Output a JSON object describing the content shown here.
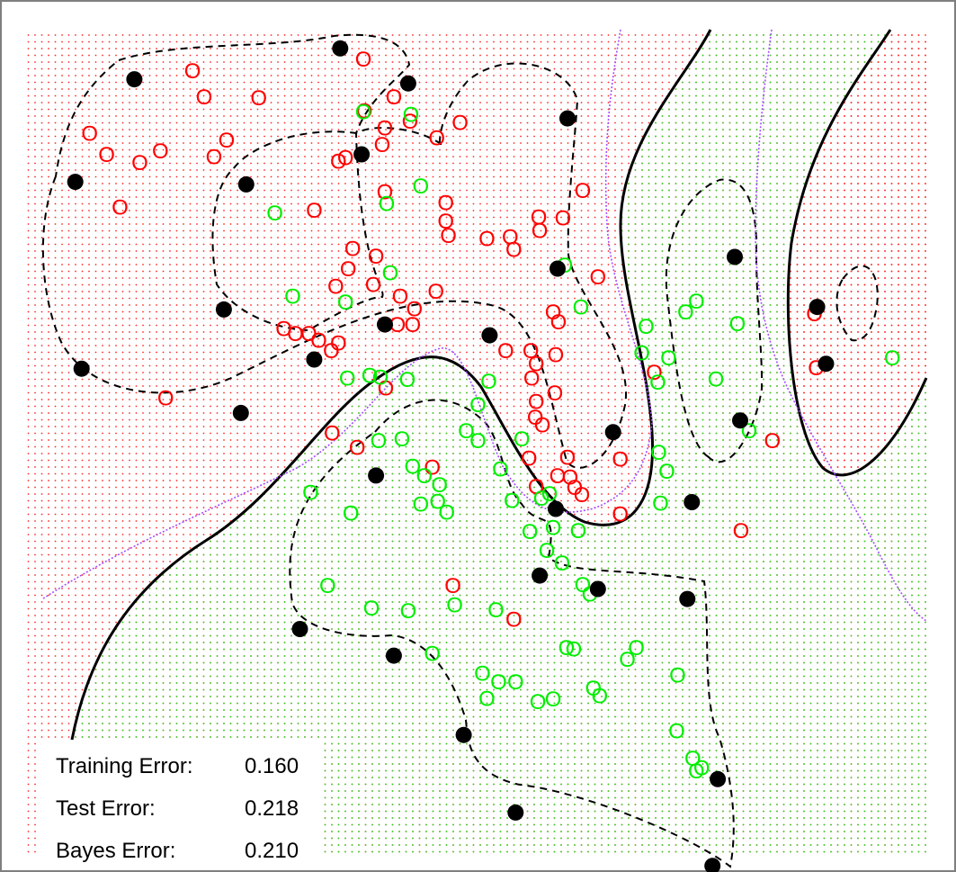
{
  "colors": {
    "class_red": "#ff0000",
    "class_green": "#00ee00",
    "region_red": "#ff2a2a",
    "region_green": "#2adc2a",
    "svm_boundary": "#000000",
    "svm_margin": "#000000",
    "bayes_boundary": "#a64dff",
    "support_vector": "#000000",
    "frame": "#7f7f7f"
  },
  "stats": {
    "training_label": "Training Error:",
    "training_value": "0.160",
    "test_label": "Test Error:",
    "test_value": "0.218",
    "bayes_label": "Bayes Error:",
    "bayes_value": "0.210"
  },
  "chart_data": {
    "type": "scatter",
    "title": "",
    "xlabel": "",
    "ylabel": "",
    "xlim": [
      0,
      1
    ],
    "ylim": [
      0,
      1
    ],
    "grid": false,
    "legend": "none",
    "marker_glyph": "O",
    "series": [
      {
        "class": "red",
        "points": [
          [
            0.185,
            0.955
          ],
          [
            0.198,
            0.924
          ],
          [
            0.259,
            0.923
          ],
          [
            0.07,
            0.88
          ],
          [
            0.089,
            0.855
          ],
          [
            0.126,
            0.845
          ],
          [
            0.149,
            0.859
          ],
          [
            0.223,
            0.872
          ],
          [
            0.209,
            0.852
          ],
          [
            0.104,
            0.792
          ],
          [
            0.348,
            0.847
          ],
          [
            0.376,
            0.969
          ],
          [
            0.41,
            0.924
          ],
          [
            0.377,
            0.907
          ],
          [
            0.428,
            0.895
          ],
          [
            0.4,
            0.887
          ],
          [
            0.484,
            0.893
          ],
          [
            0.458,
            0.875
          ],
          [
            0.397,
            0.867
          ],
          [
            0.356,
            0.851
          ],
          [
            0.4,
            0.81
          ],
          [
            0.321,
            0.788
          ],
          [
            0.468,
            0.797
          ],
          [
            0.468,
            0.775
          ],
          [
            0.471,
            0.758
          ],
          [
            0.514,
            0.754
          ],
          [
            0.54,
            0.756
          ],
          [
            0.544,
            0.741
          ],
          [
            0.572,
            0.78
          ],
          [
            0.573,
            0.764
          ],
          [
            0.599,
            0.779
          ],
          [
            0.621,
            0.812
          ],
          [
            0.364,
            0.742
          ],
          [
            0.39,
            0.733
          ],
          [
            0.359,
            0.718
          ],
          [
            0.345,
            0.697
          ],
          [
            0.387,
            0.699
          ],
          [
            0.417,
            0.685
          ],
          [
            0.457,
            0.691
          ],
          [
            0.433,
            0.67
          ],
          [
            0.431,
            0.651
          ],
          [
            0.414,
            0.651
          ],
          [
            0.588,
            0.666
          ],
          [
            0.594,
            0.654
          ],
          [
            0.638,
            0.708
          ],
          [
            0.287,
            0.646
          ],
          [
            0.3,
            0.64
          ],
          [
            0.315,
            0.64
          ],
          [
            0.326,
            0.632
          ],
          [
            0.348,
            0.629
          ],
          [
            0.34,
            0.62
          ],
          [
            0.535,
            0.62
          ],
          [
            0.563,
            0.62
          ],
          [
            0.569,
            0.604
          ],
          [
            0.591,
            0.615
          ],
          [
            0.564,
            0.587
          ],
          [
            0.569,
            0.559
          ],
          [
            0.59,
            0.569
          ],
          [
            0.568,
            0.54
          ],
          [
            0.576,
            0.531
          ],
          [
            0.701,
            0.594
          ],
          [
            0.155,
            0.563
          ],
          [
            0.401,
            0.575
          ],
          [
            0.341,
            0.521
          ],
          [
            0.369,
            0.504
          ],
          [
            0.453,
            0.48
          ],
          [
            0.561,
            0.491
          ],
          [
            0.604,
            0.492
          ],
          [
            0.569,
            0.457
          ],
          [
            0.607,
            0.468
          ],
          [
            0.593,
            0.47
          ],
          [
            0.612,
            0.456
          ],
          [
            0.62,
            0.447
          ],
          [
            0.663,
            0.49
          ],
          [
            0.663,
            0.424
          ],
          [
            0.798,
            0.404
          ],
          [
            0.833,
            0.512
          ],
          [
            0.476,
            0.338
          ],
          [
            0.544,
            0.298
          ],
          [
            0.88,
            0.664
          ],
          [
            0.882,
            0.599
          ]
        ]
      },
      {
        "class": "green",
        "points": [
          [
            0.376,
            0.906
          ],
          [
            0.429,
            0.903
          ],
          [
            0.44,
            0.817
          ],
          [
            0.402,
            0.796
          ],
          [
            0.277,
            0.785
          ],
          [
            0.406,
            0.713
          ],
          [
            0.297,
            0.685
          ],
          [
            0.356,
            0.678
          ],
          [
            0.601,
            0.722
          ],
          [
            0.619,
            0.672
          ],
          [
            0.692,
            0.649
          ],
          [
            0.358,
            0.587
          ],
          [
            0.383,
            0.59
          ],
          [
            0.395,
            0.588
          ],
          [
            0.425,
            0.585
          ],
          [
            0.516,
            0.583
          ],
          [
            0.504,
            0.555
          ],
          [
            0.687,
            0.617
          ],
          [
            0.717,
            0.611
          ],
          [
            0.705,
            0.582
          ],
          [
            0.736,
            0.666
          ],
          [
            0.748,
            0.679
          ],
          [
            0.794,
            0.652
          ],
          [
            0.77,
            0.586
          ],
          [
            0.807,
            0.524
          ],
          [
            0.393,
            0.512
          ],
          [
            0.419,
            0.514
          ],
          [
            0.431,
            0.481
          ],
          [
            0.444,
            0.47
          ],
          [
            0.491,
            0.524
          ],
          [
            0.504,
            0.512
          ],
          [
            0.553,
            0.514
          ],
          [
            0.317,
            0.45
          ],
          [
            0.362,
            0.425
          ],
          [
            0.44,
            0.436
          ],
          [
            0.459,
            0.439
          ],
          [
            0.461,
            0.459
          ],
          [
            0.469,
            0.426
          ],
          [
            0.529,
            0.478
          ],
          [
            0.542,
            0.44
          ],
          [
            0.584,
            0.448
          ],
          [
            0.575,
            0.443
          ],
          [
            0.588,
            0.408
          ],
          [
            0.616,
            0.404
          ],
          [
            0.715,
            0.475
          ],
          [
            0.708,
            0.437
          ],
          [
            0.706,
            0.498
          ],
          [
            0.562,
            0.403
          ],
          [
            0.581,
            0.38
          ],
          [
            0.598,
            0.365
          ],
          [
            0.621,
            0.339
          ],
          [
            0.629,
            0.328
          ],
          [
            0.727,
            0.231
          ],
          [
            0.336,
            0.338
          ],
          [
            0.385,
            0.311
          ],
          [
            0.426,
            0.308
          ],
          [
            0.478,
            0.315
          ],
          [
            0.524,
            0.309
          ],
          [
            0.453,
            0.257
          ],
          [
            0.509,
            0.233
          ],
          [
            0.527,
            0.223
          ],
          [
            0.546,
            0.223
          ],
          [
            0.514,
            0.203
          ],
          [
            0.571,
            0.199
          ],
          [
            0.603,
            0.264
          ],
          [
            0.611,
            0.262
          ],
          [
            0.671,
            0.25
          ],
          [
            0.681,
            0.264
          ],
          [
            0.588,
            0.202
          ],
          [
            0.633,
            0.215
          ],
          [
            0.64,
            0.206
          ],
          [
            0.726,
            0.164
          ],
          [
            0.744,
            0.131
          ],
          [
            0.748,
            0.116
          ],
          [
            0.754,
            0.12
          ],
          [
            0.967,
            0.611
          ]
        ]
      },
      {
        "class": "support_vector",
        "points": [
          [
            0.35,
            0.983
          ],
          [
            0.426,
            0.941
          ],
          [
            0.12,
            0.946
          ],
          [
            0.604,
            0.899
          ],
          [
            0.374,
            0.856
          ],
          [
            0.245,
            0.82
          ],
          [
            0.054,
            0.823
          ],
          [
            0.791,
            0.733
          ],
          [
            0.593,
            0.719
          ],
          [
            0.22,
            0.67
          ],
          [
            0.883,
            0.673
          ],
          [
            0.4,
            0.652
          ],
          [
            0.517,
            0.639
          ],
          [
            0.321,
            0.61
          ],
          [
            0.893,
            0.605
          ],
          [
            0.061,
            0.599
          ],
          [
            0.239,
            0.546
          ],
          [
            0.797,
            0.537
          ],
          [
            0.655,
            0.523
          ],
          [
            0.39,
            0.471
          ],
          [
            0.743,
            0.439
          ],
          [
            0.591,
            0.431
          ],
          [
            0.573,
            0.351
          ],
          [
            0.638,
            0.335
          ],
          [
            0.738,
            0.323
          ],
          [
            0.305,
            0.287
          ],
          [
            0.41,
            0.255
          ],
          [
            0.488,
            0.16
          ],
          [
            0.772,
            0.107
          ],
          [
            0.546,
            0.067
          ],
          [
            0.766,
            0.003
          ]
        ]
      }
    ]
  }
}
